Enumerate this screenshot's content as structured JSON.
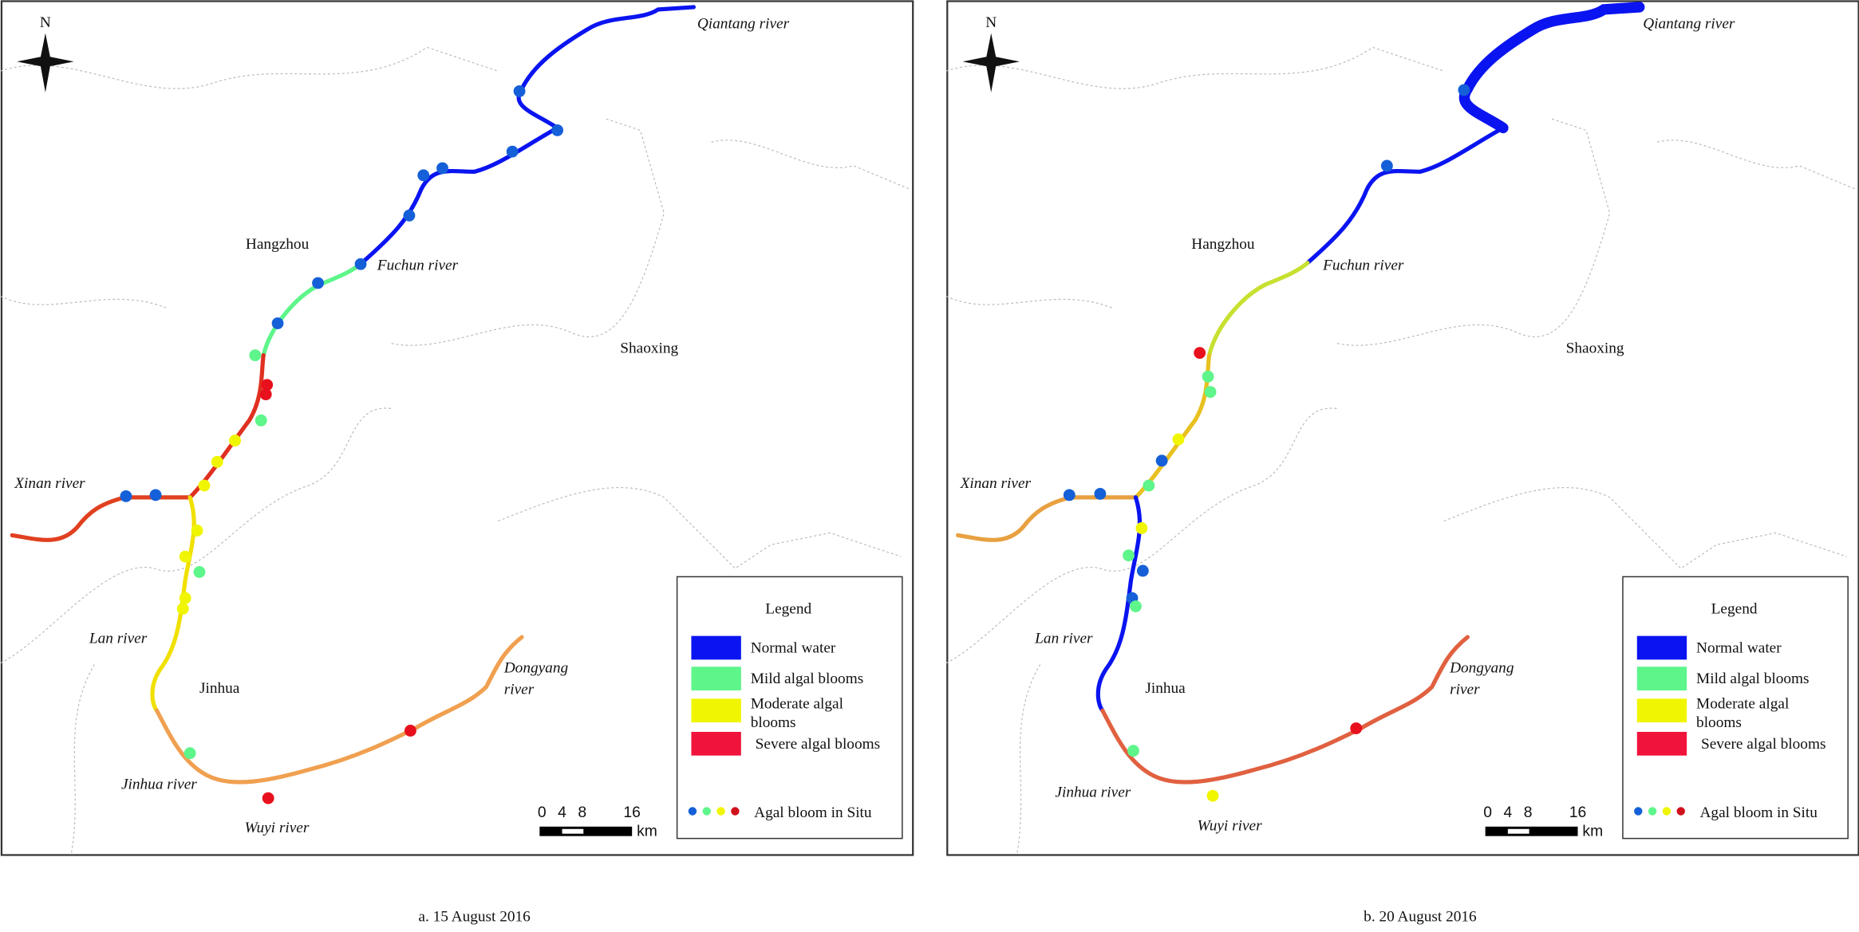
{
  "panels": [
    {
      "caption": "a. 15 August 2016",
      "north": "N",
      "places": [
        "Qiantang river",
        "Hangzhou",
        "Fuchun river",
        "Shaoxing",
        "Xinan river",
        "Lan river",
        "Jinhua",
        [
          "Dongyang",
          "river"
        ],
        "Jinhua river",
        "Wuyi river"
      ],
      "legend": {
        "title": "Legend",
        "items": [
          {
            "label": "Normal water",
            "color": "#0a14f0"
          },
          {
            "label": "Mild algal blooms",
            "color": "#5ef58a"
          },
          {
            "label": [
              "Moderate algal",
              "blooms"
            ],
            "color": "#f0f500"
          },
          {
            "label": "Severe algal blooms",
            "color": "#f0143c"
          }
        ],
        "in_situ": "Agal bloom in Situ",
        "in_situ_colors": [
          "#1560d8",
          "#5ef58a",
          "#f0f500",
          "#d0101c"
        ]
      },
      "scale": {
        "ticks": [
          "0",
          "4",
          "8",
          "16"
        ],
        "unit": "km"
      }
    },
    {
      "caption": "b. 20 August 2016",
      "north": "N",
      "places": [
        "Qiantang river",
        "Hangzhou",
        "Fuchun river",
        "Shaoxing",
        "Xinan river",
        "Lan river",
        "Jinhua",
        [
          "Dongyang",
          "river"
        ],
        "Jinhua river",
        "Wuyi river"
      ],
      "legend": {
        "title": "Legend",
        "items": [
          {
            "label": "Normal water",
            "color": "#0a14f0"
          },
          {
            "label": "Mild algal blooms",
            "color": "#5ef58a"
          },
          {
            "label": [
              "Moderate algal",
              "blooms"
            ],
            "color": "#f0f500"
          },
          {
            "label": "Severe algal blooms",
            "color": "#f0143c"
          }
        ],
        "in_situ": "Agal bloom in Situ",
        "in_situ_colors": [
          "#1560d8",
          "#5ef58a",
          "#f0f500",
          "#d0101c"
        ]
      },
      "scale": {
        "ticks": [
          "0",
          "4",
          "8",
          "16"
        ],
        "unit": "km"
      }
    }
  ]
}
